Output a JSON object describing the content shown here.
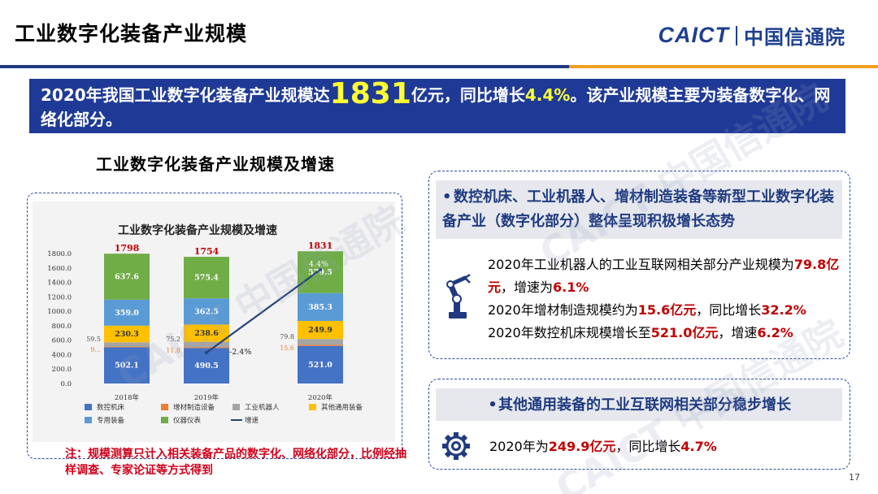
{
  "header": {
    "title": "工业数字化装备产业规模",
    "logo_abbr": "CAICT",
    "logo_cn": "中国信通院"
  },
  "banner": {
    "part1": "2020年我国工业数字化装备产业规模达",
    "big_value": "1831",
    "part2": "亿元，同比增长",
    "growth": "4.4%",
    "part3": "。该产业规模主要为装备数字化、网络化部分。"
  },
  "chart_heading": "工业数字化装备产业规模及增速",
  "chart_data": {
    "type": "bar",
    "stacked": true,
    "title": "工业数字化装备产业规模及增速",
    "categories": [
      "2018年",
      "2019年",
      "2020年"
    ],
    "ylim": [
      0,
      1800
    ],
    "yticks": [
      "0.0",
      "200.0",
      "400.0",
      "600.0",
      "800.0",
      "1000.0",
      "1200.0",
      "1400.0",
      "1600.0",
      "1800.0"
    ],
    "series": [
      {
        "name": "数控机床",
        "values": [
          502.1,
          490.5,
          521.0
        ],
        "labels": [
          "502.1",
          "490.5",
          "521.0"
        ],
        "color": "#4472c4"
      },
      {
        "name": "增材制造设备",
        "values": [
          9,
          11.8,
          15.6
        ],
        "labels": [
          "9...",
          "11.8",
          "15.6"
        ],
        "color": "#ed7d31"
      },
      {
        "name": "工业机器人",
        "values": [
          59.5,
          75.2,
          79.8
        ],
        "labels": [
          "59.5",
          "75.2",
          "79.8"
        ],
        "color": "#a5a5a5"
      },
      {
        "name": "其他通用装备",
        "values": [
          230.3,
          238.6,
          249.9
        ],
        "labels": [
          "230.3",
          "238.6",
          "249.9"
        ],
        "color": "#ffc000"
      },
      {
        "name": "专用装备",
        "values": [
          359.0,
          362.5,
          385.3
        ],
        "labels": [
          "359.0",
          "362.5",
          "385.3"
        ],
        "color": "#5b9bd5"
      },
      {
        "name": "仪器仪表",
        "values": [
          637.6,
          575.4,
          579.5
        ],
        "labels": [
          "637.6",
          "575.4",
          "579.5"
        ],
        "color": "#70ad47"
      }
    ],
    "totals": [
      "1798",
      "1754",
      "1831"
    ],
    "growth_line": {
      "name": "增速",
      "labels_shown": {
        "2019年": "-2.4%",
        "2020年": "4.4%"
      },
      "color": "#264478"
    },
    "legend_position": "bottom",
    "grid": false
  },
  "note": "注：规模测算只计入相关装备产品的数字化、网络化部分，比例经抽样调查、专家论证等方式得到",
  "panel_top": {
    "bullet": "•",
    "heading": "数控机床、工业机器人、增材制造装备等新型工业数字化装备产业（数字化部分）整体呈现积极增长态势",
    "stat1": {
      "text_a": "2020年工业机器人的工业互联网相关部分产业规模为",
      "value_a": "79.8亿元",
      "text_b": "，增速为",
      "value_b": "6.1%"
    },
    "stat2": {
      "text_a": "2020年增材制造规模约为",
      "value_a": "15.6亿元",
      "text_b": "，同比增长",
      "value_b": "32.2%"
    },
    "stat3": {
      "text_a": "2020年数控机床规模增长至",
      "value_a": "521.0亿元",
      "text_b": "，增速",
      "value_b": "6.2%"
    }
  },
  "panel_bottom": {
    "bullet": "•",
    "heading": "其他通用装备的工业互联网相关部分稳步增长",
    "stat": {
      "text_a": "2020年为",
      "value_a": "249.9亿元",
      "text_b": "，同比增长",
      "value_b": "4.7%"
    }
  },
  "page_number": "17",
  "watermark_text": "CAICT 中国信通院"
}
